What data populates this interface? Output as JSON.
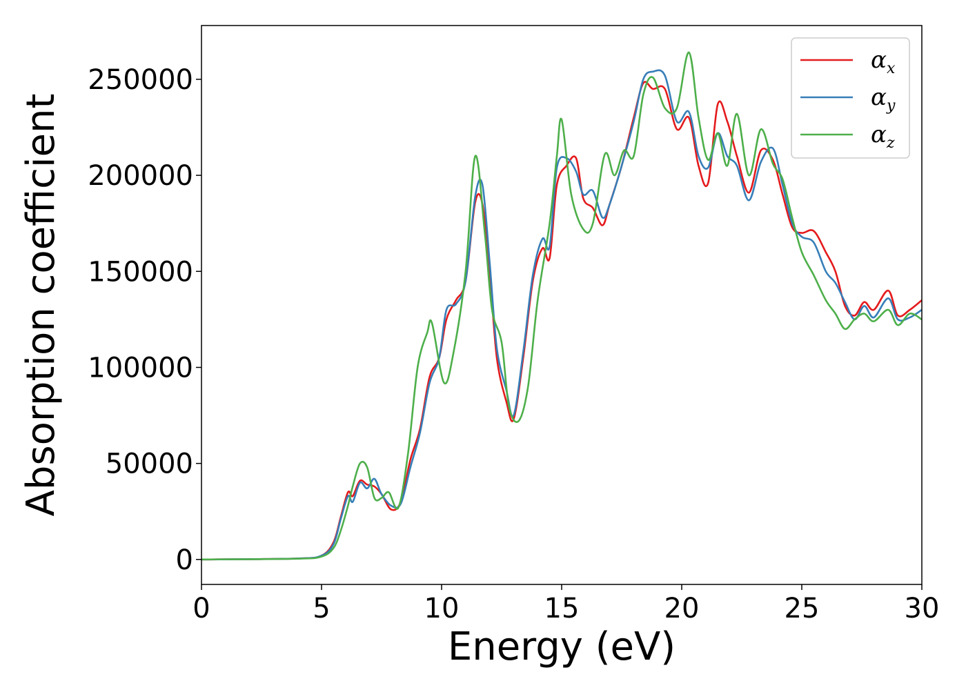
{
  "chart_data": {
    "type": "line",
    "title": "",
    "xlabel": "Energy (eV)",
    "ylabel": "Absorption coefficient",
    "xlim": [
      0,
      30
    ],
    "ylim": [
      -13000,
      278000
    ],
    "xticks": [
      0,
      5,
      10,
      15,
      20,
      25,
      30
    ],
    "xtick_labels": [
      "0",
      "5",
      "10",
      "15",
      "20",
      "25",
      "30"
    ],
    "yticks": [
      0,
      50000,
      100000,
      150000,
      200000,
      250000
    ],
    "ytick_labels": [
      "0",
      "50000",
      "100000",
      "150000",
      "200000",
      "250000"
    ],
    "grid": false,
    "legend_position": "top-right",
    "series": [
      {
        "name": "α",
        "subscript": "x",
        "color": "#e41a1c",
        "points": [
          [
            0,
            0
          ],
          [
            4,
            500
          ],
          [
            5,
            2000
          ],
          [
            5.5,
            9000
          ],
          [
            5.8,
            22000
          ],
          [
            6.1,
            35000
          ],
          [
            6.3,
            33000
          ],
          [
            6.6,
            41000
          ],
          [
            6.9,
            39000
          ],
          [
            7.2,
            38000
          ],
          [
            7.5,
            34000
          ],
          [
            7.9,
            26000
          ],
          [
            8.3,
            30000
          ],
          [
            8.7,
            52000
          ],
          [
            9.1,
            68000
          ],
          [
            9.5,
            95000
          ],
          [
            9.9,
            105000
          ],
          [
            10.2,
            125000
          ],
          [
            10.6,
            135000
          ],
          [
            11.0,
            145000
          ],
          [
            11.4,
            186000
          ],
          [
            11.7,
            185000
          ],
          [
            12.0,
            150000
          ],
          [
            12.3,
            105000
          ],
          [
            12.7,
            82000
          ],
          [
            13.0,
            73000
          ],
          [
            13.4,
            105000
          ],
          [
            13.8,
            145000
          ],
          [
            14.2,
            162000
          ],
          [
            14.5,
            157000
          ],
          [
            14.8,
            195000
          ],
          [
            15.2,
            205000
          ],
          [
            15.6,
            209000
          ],
          [
            15.9,
            188000
          ],
          [
            16.3,
            183000
          ],
          [
            16.7,
            174000
          ],
          [
            17.0,
            185000
          ],
          [
            17.5,
            205000
          ],
          [
            18.0,
            230000
          ],
          [
            18.4,
            248000
          ],
          [
            18.8,
            245000
          ],
          [
            19.3,
            245000
          ],
          [
            19.8,
            224000
          ],
          [
            20.3,
            230000
          ],
          [
            20.7,
            205000
          ],
          [
            21.1,
            196000
          ],
          [
            21.5,
            237000
          ],
          [
            21.9,
            228000
          ],
          [
            22.3,
            210000
          ],
          [
            22.8,
            191000
          ],
          [
            23.3,
            213000
          ],
          [
            23.8,
            208000
          ],
          [
            24.2,
            190000
          ],
          [
            24.6,
            173000
          ],
          [
            25.0,
            170000
          ],
          [
            25.5,
            171000
          ],
          [
            26.0,
            160000
          ],
          [
            26.4,
            150000
          ],
          [
            26.8,
            132000
          ],
          [
            27.2,
            127000
          ],
          [
            27.6,
            134000
          ],
          [
            28.0,
            130000
          ],
          [
            28.6,
            140000
          ],
          [
            29.0,
            127000
          ],
          [
            29.5,
            130000
          ],
          [
            30.0,
            135000
          ]
        ]
      },
      {
        "name": "α",
        "subscript": "y",
        "color": "#377eb8",
        "points": [
          [
            0,
            0
          ],
          [
            4,
            500
          ],
          [
            5,
            2000
          ],
          [
            5.5,
            8000
          ],
          [
            5.8,
            21000
          ],
          [
            6.1,
            33000
          ],
          [
            6.3,
            30000
          ],
          [
            6.6,
            40000
          ],
          [
            6.9,
            37000
          ],
          [
            7.2,
            42000
          ],
          [
            7.5,
            34000
          ],
          [
            7.9,
            28000
          ],
          [
            8.3,
            29000
          ],
          [
            8.7,
            48000
          ],
          [
            9.1,
            66000
          ],
          [
            9.5,
            92000
          ],
          [
            9.9,
            105000
          ],
          [
            10.2,
            130000
          ],
          [
            10.6,
            133000
          ],
          [
            11.0,
            145000
          ],
          [
            11.4,
            189000
          ],
          [
            11.7,
            195000
          ],
          [
            12.0,
            155000
          ],
          [
            12.3,
            110000
          ],
          [
            12.7,
            88000
          ],
          [
            13.0,
            75000
          ],
          [
            13.4,
            108000
          ],
          [
            13.8,
            148000
          ],
          [
            14.2,
            167000
          ],
          [
            14.5,
            163000
          ],
          [
            14.8,
            204000
          ],
          [
            15.2,
            209000
          ],
          [
            15.6,
            202000
          ],
          [
            15.9,
            190000
          ],
          [
            16.3,
            192000
          ],
          [
            16.7,
            178000
          ],
          [
            17.0,
            185000
          ],
          [
            17.5,
            205000
          ],
          [
            18.0,
            228000
          ],
          [
            18.4,
            250000
          ],
          [
            18.8,
            254000
          ],
          [
            19.3,
            252000
          ],
          [
            19.8,
            228000
          ],
          [
            20.3,
            233000
          ],
          [
            20.7,
            210000
          ],
          [
            21.1,
            204000
          ],
          [
            21.5,
            222000
          ],
          [
            21.9,
            210000
          ],
          [
            22.3,
            205000
          ],
          [
            22.8,
            187000
          ],
          [
            23.3,
            207000
          ],
          [
            23.8,
            214000
          ],
          [
            24.2,
            195000
          ],
          [
            24.6,
            175000
          ],
          [
            25.0,
            168000
          ],
          [
            25.5,
            165000
          ],
          [
            26.0,
            150000
          ],
          [
            26.4,
            144000
          ],
          [
            26.8,
            134000
          ],
          [
            27.2,
            125000
          ],
          [
            27.6,
            132000
          ],
          [
            28.0,
            126000
          ],
          [
            28.6,
            136000
          ],
          [
            29.0,
            125000
          ],
          [
            29.5,
            126000
          ],
          [
            30.0,
            130000
          ]
        ]
      },
      {
        "name": "α",
        "subscript": "z",
        "color": "#4daf4a",
        "points": [
          [
            0,
            0
          ],
          [
            4,
            400
          ],
          [
            5,
            1500
          ],
          [
            5.5,
            6000
          ],
          [
            5.8,
            15000
          ],
          [
            6.1,
            28000
          ],
          [
            6.3,
            38000
          ],
          [
            6.6,
            50000
          ],
          [
            6.9,
            48000
          ],
          [
            7.2,
            32000
          ],
          [
            7.5,
            32000
          ],
          [
            7.8,
            35000
          ],
          [
            8.2,
            27000
          ],
          [
            8.6,
            55000
          ],
          [
            9.0,
            100000
          ],
          [
            9.4,
            118000
          ],
          [
            9.6,
            123000
          ],
          [
            10.1,
            92000
          ],
          [
            10.5,
            108000
          ],
          [
            11.0,
            150000
          ],
          [
            11.4,
            210000
          ],
          [
            11.8,
            170000
          ],
          [
            12.1,
            130000
          ],
          [
            12.5,
            113000
          ],
          [
            12.8,
            80000
          ],
          [
            13.2,
            72000
          ],
          [
            13.6,
            90000
          ],
          [
            14.0,
            135000
          ],
          [
            14.5,
            175000
          ],
          [
            14.8,
            210000
          ],
          [
            15.0,
            229000
          ],
          [
            15.4,
            190000
          ],
          [
            15.9,
            172000
          ],
          [
            16.3,
            175000
          ],
          [
            16.8,
            211000
          ],
          [
            17.2,
            200000
          ],
          [
            17.6,
            213000
          ],
          [
            18.0,
            210000
          ],
          [
            18.4,
            242000
          ],
          [
            18.8,
            251000
          ],
          [
            19.3,
            235000
          ],
          [
            19.8,
            235000
          ],
          [
            20.3,
            264000
          ],
          [
            20.7,
            230000
          ],
          [
            21.1,
            208000
          ],
          [
            21.5,
            222000
          ],
          [
            21.9,
            205000
          ],
          [
            22.3,
            232000
          ],
          [
            22.8,
            200000
          ],
          [
            23.3,
            224000
          ],
          [
            23.8,
            206000
          ],
          [
            24.2,
            198000
          ],
          [
            24.6,
            178000
          ],
          [
            25.0,
            160000
          ],
          [
            25.5,
            148000
          ],
          [
            26.0,
            135000
          ],
          [
            26.4,
            128000
          ],
          [
            26.8,
            120000
          ],
          [
            27.2,
            125000
          ],
          [
            27.6,
            128000
          ],
          [
            28.0,
            124000
          ],
          [
            28.6,
            130000
          ],
          [
            29.0,
            122000
          ],
          [
            29.5,
            128000
          ],
          [
            30.0,
            125000
          ]
        ]
      }
    ]
  }
}
